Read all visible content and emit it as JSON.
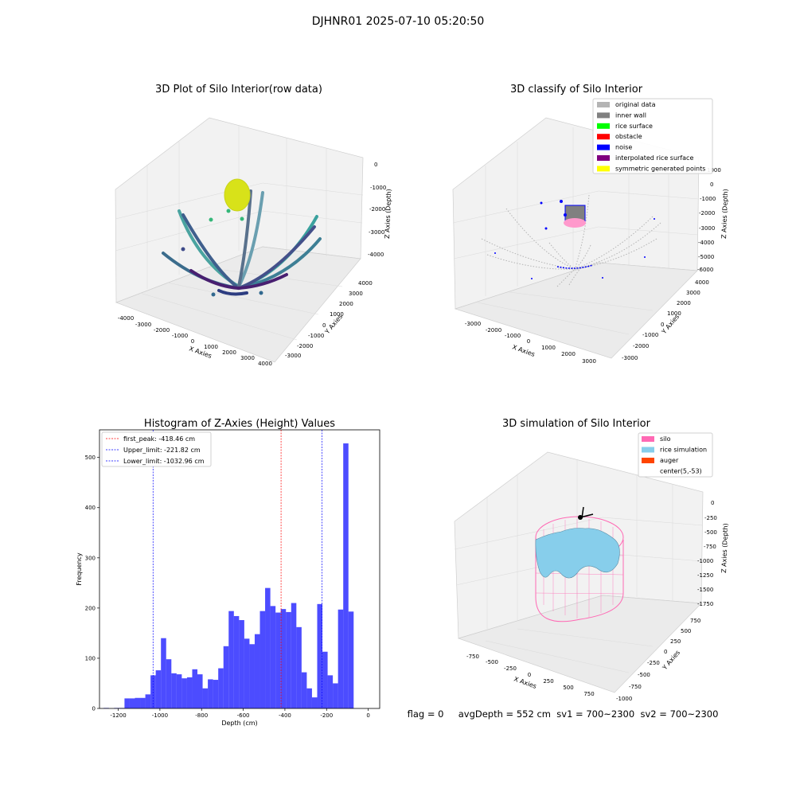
{
  "figure": {
    "title": "DJHNR01 2025-07-10 05:20:50",
    "status_line": "flag = 0     avgDepth = 552 cm  sv1 = 700~2300  sv2 = 700~2300"
  },
  "panels": {
    "raw": {
      "title": "3D Plot of Silo Interior(row data)",
      "xlabel": "X Axies",
      "ylabel": "Y Axies",
      "zlabel": "Z Axies (Depth)",
      "xticks": [
        "-4000",
        "-3000",
        "-2000",
        "-1000",
        "0",
        "1000",
        "2000",
        "3000",
        "4000"
      ],
      "yticks": [
        "-3000",
        "-2000",
        "-1000",
        "0",
        "1000",
        "2000",
        "3000",
        "4000"
      ],
      "zticks": [
        "0",
        "-1000",
        "-2000",
        "-3000",
        "-4000"
      ]
    },
    "classify": {
      "title": "3D classify of Silo Interior",
      "xlabel": "X Axies",
      "ylabel": "Y Axies",
      "zlabel": "Z Axies (Depth)",
      "xticks": [
        "-3000",
        "-2000",
        "-1000",
        "0",
        "1000",
        "2000",
        "3000"
      ],
      "yticks": [
        "-3000",
        "-2000",
        "-1000",
        "0",
        "1000",
        "2000",
        "3000",
        "4000"
      ],
      "zticks": [
        "1000",
        "0",
        "-1000",
        "-2000",
        "-3000",
        "-4000",
        "-5000",
        "-6000"
      ],
      "legend": [
        {
          "label": "original data",
          "color": "#b4b4b4"
        },
        {
          "label": "inner wall",
          "color": "#808080"
        },
        {
          "label": "rice surface",
          "color": "#00ff00"
        },
        {
          "label": "obstacle",
          "color": "#ff0000"
        },
        {
          "label": "noise",
          "color": "#0000ff"
        },
        {
          "label": "interpolated rice surface",
          "color": "#800080"
        },
        {
          "label": "symmetric generated points",
          "color": "#ffff00"
        }
      ]
    },
    "simulation": {
      "title": "3D simulation of Silo Interior",
      "xlabel": "X Axies",
      "ylabel": "Y Axies",
      "zlabel": "Z Axies (Depth)",
      "xticks": [
        "-750",
        "-500",
        "-250",
        "0",
        "250",
        "500",
        "750"
      ],
      "yticks": [
        "-1000",
        "-750",
        "-500",
        "-250",
        "0",
        "250",
        "500",
        "750"
      ],
      "zticks": [
        "0",
        "-250",
        "-500",
        "-750",
        "-1000",
        "-1250",
        "-1500",
        "-1750"
      ],
      "legend": [
        {
          "label": "silo",
          "color": "#ff69b4"
        },
        {
          "label": "rice simulation",
          "color": "#87ceeb"
        },
        {
          "label": "auger",
          "color": "#ff4500"
        },
        {
          "label": "center(5,-53)",
          "color": "#ffffff"
        }
      ]
    }
  },
  "chart_data": {
    "type": "bar",
    "title": "Histogram of Z-Axies (Height) Values",
    "xlabel": "Depth (cm)",
    "ylabel": "Frequency",
    "xlim": [
      -1290,
      55
    ],
    "ylim": [
      0,
      555
    ],
    "xticks": [
      -1200,
      -1000,
      -800,
      -600,
      -400,
      -200,
      0
    ],
    "yticks": [
      0,
      100,
      200,
      300,
      400,
      500
    ],
    "bar_color": "#0000ff",
    "bin_start": -1270,
    "bin_width": 25,
    "values": [
      1,
      0,
      1,
      1,
      20,
      20,
      21,
      21,
      28,
      66,
      76,
      140,
      98,
      70,
      68,
      60,
      62,
      78,
      68,
      40,
      58,
      57,
      80,
      124,
      194,
      184,
      176,
      139,
      128,
      148,
      194,
      240,
      204,
      191,
      198,
      192,
      210,
      162,
      72,
      40,
      22,
      208,
      113,
      66,
      50,
      197,
      528,
      193
    ],
    "lines": [
      {
        "label": "first_peak: -418.46 cm",
        "x": -418.46,
        "color": "#ff0000"
      },
      {
        "label": "Upper_limit: -221.82 cm",
        "x": -221.82,
        "color": "#0000ff"
      },
      {
        "label": "Lower_limit: -1032.96 cm",
        "x": -1032.96,
        "color": "#0000ff"
      }
    ],
    "grid": false,
    "legend_position": "top-left"
  }
}
